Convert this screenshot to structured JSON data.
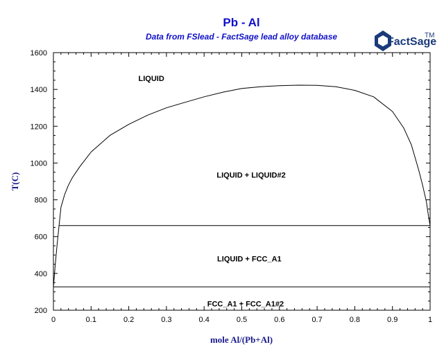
{
  "chart_data": {
    "type": "line",
    "title": "Pb - Al",
    "subtitle": "Data from FSlead - FactSage lead alloy database",
    "xlabel": "mole Al/(Pb+Al)",
    "ylabel": "T(C)",
    "xlim": [
      0,
      1
    ],
    "ylim": [
      200,
      1600
    ],
    "x_ticks": [
      "0",
      "0.1",
      "0.2",
      "0.3",
      "0.4",
      "0.5",
      "0.6",
      "0.7",
      "0.8",
      "0.9",
      "1"
    ],
    "y_ticks": [
      "200",
      "400",
      "600",
      "800",
      "1000",
      "1200",
      "1400",
      "1600"
    ],
    "grid": false,
    "series": [
      {
        "x": [
          0.0,
          0.005,
          0.01,
          0.015,
          0.02,
          0.03,
          0.04,
          0.05,
          0.07,
          0.1,
          0.15,
          0.2,
          0.25,
          0.3,
          0.35,
          0.4,
          0.45,
          0.5,
          0.55,
          0.6,
          0.65,
          0.7,
          0.75,
          0.8,
          0.85,
          0.9,
          0.93,
          0.95,
          0.97,
          0.98,
          0.99,
          0.995,
          1.0
        ],
        "y": [
          327,
          450,
          560,
          660,
          760,
          830,
          880,
          920,
          980,
          1060,
          1150,
          1210,
          1260,
          1300,
          1330,
          1360,
          1385,
          1405,
          1415,
          1420,
          1423,
          1422,
          1415,
          1395,
          1360,
          1280,
          1190,
          1100,
          960,
          880,
          790,
          720,
          660
        ]
      },
      {
        "x": [
          0.015,
          1.0
        ],
        "y": [
          660,
          660
        ]
      },
      {
        "x": [
          0.0,
          1.0
        ],
        "y": [
          327,
          327
        ]
      }
    ],
    "annotations": [
      {
        "text": "LIQUID",
        "x": 0.26,
        "y": 1460
      },
      {
        "text": "LIQUID + LIQUID#2",
        "x": 0.525,
        "y": 935
      },
      {
        "text": "LIQUID + FCC_A1",
        "x": 0.52,
        "y": 480
      },
      {
        "text": "FCC_A1 + FCC_A1#2",
        "x": 0.51,
        "y": 235
      }
    ]
  },
  "logo": {
    "main": "FactSage",
    "sub": "TM"
  }
}
